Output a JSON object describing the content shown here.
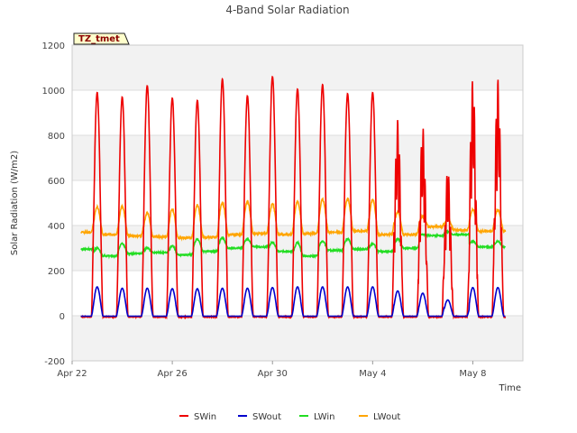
{
  "chart_data": {
    "type": "line",
    "title": "4-Band Solar Radiation",
    "xlabel": "Time",
    "ylabel": "Solar Radiation (W/m2)",
    "ylim": [
      -200,
      1200
    ],
    "yticks": [
      -200,
      0,
      200,
      400,
      600,
      800,
      1000,
      1200
    ],
    "xlim": [
      0,
      18
    ],
    "xticks": [
      {
        "day": 0,
        "label": "Apr 22"
      },
      {
        "day": 4,
        "label": "Apr 26"
      },
      {
        "day": 8,
        "label": "Apr 30"
      },
      {
        "day": 12,
        "label": "May 4"
      },
      {
        "day": 16,
        "label": "May 8"
      }
    ],
    "badge": "TZ_tmet",
    "grid": "alternating horizontal bands",
    "legend_position": "bottom-center",
    "daily_peaks": {
      "swin": [
        1045,
        990,
        970,
        1020,
        965,
        955,
        1050,
        975,
        1060,
        1005,
        1025,
        985,
        990,
        870,
        840,
        650,
        1050
      ],
      "swout": [
        125,
        128,
        122,
        122,
        120,
        120,
        122,
        122,
        125,
        128,
        128,
        128,
        128,
        110,
        100,
        70,
        125
      ],
      "lwout_day": [
        480,
        482,
        485,
        455,
        472,
        490,
        500,
        505,
        495,
        505,
        515,
        518,
        515,
        460,
        440,
        430,
        470
      ],
      "lwout_night": [
        370,
        360,
        355,
        350,
        345,
        348,
        360,
        365,
        360,
        365,
        370,
        375,
        360,
        360,
        395,
        380,
        375
      ],
      "lwin_day": [
        325,
        300,
        320,
        300,
        310,
        340,
        345,
        340,
        325,
        325,
        330,
        340,
        320,
        340,
        360,
        372,
        330
      ],
      "lwin_night": [
        295,
        265,
        275,
        280,
        270,
        285,
        300,
        305,
        285,
        265,
        290,
        295,
        285,
        300,
        355,
        360,
        305
      ]
    },
    "series": [
      {
        "name": "SWin",
        "color": "#ee0000"
      },
      {
        "name": "SWout",
        "color": "#0000cc"
      },
      {
        "name": "LWin",
        "color": "#22dd22"
      },
      {
        "name": "LWout",
        "color": "#ffa500"
      }
    ]
  }
}
